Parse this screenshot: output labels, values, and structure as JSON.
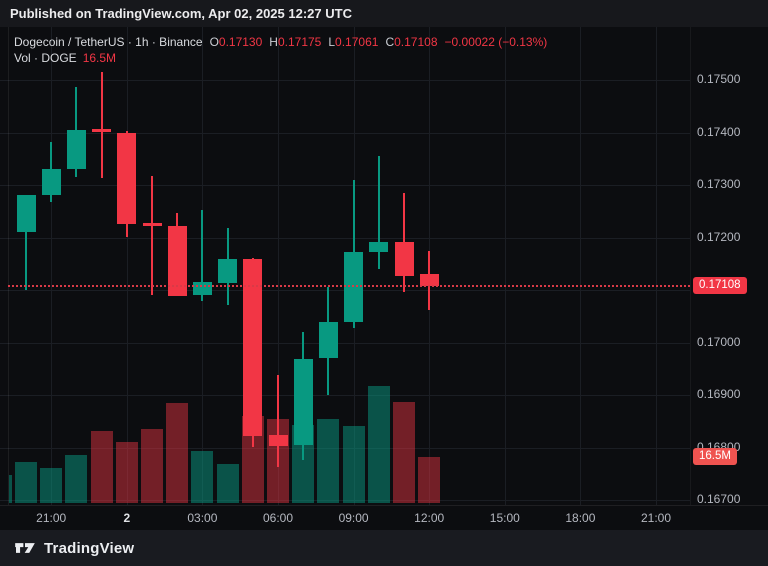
{
  "banner": {
    "text": "Published on TradingView.com, Apr 02, 2025 12:27 UTC"
  },
  "legend": {
    "title": "Dogecoin / TetherUS · 1h · Binance",
    "ohlc": [
      {
        "label": "O",
        "value": "0.17130"
      },
      {
        "label": "H",
        "value": "0.17175"
      },
      {
        "label": "L",
        "value": "0.17061"
      },
      {
        "label": "C",
        "value": "0.17108"
      }
    ],
    "change": "−0.00022 (−0.13%)",
    "volume_label": "Vol · DOGE",
    "volume_value": "16.5M"
  },
  "footer": {
    "brand": "TradingView"
  },
  "colors": {
    "up": "#089981",
    "down": "#f23645",
    "volume_up": "rgba(8,153,129,0.5)",
    "volume_down": "rgba(242,54,69,0.45)",
    "price_badge": "#f23645",
    "volume_badge": "#ef5350",
    "grid": "#1b1e24",
    "axis_text": "#b5b8c0",
    "background": "#0c0d10"
  },
  "chart_data": {
    "type": "candlestick",
    "title": "Dogecoin / TetherUS",
    "interval": "1h",
    "exchange": "Binance",
    "grid": true,
    "legend_position": "top-left",
    "price_axis": {
      "min": 0.167,
      "max": 0.175,
      "tick_step": 0.001,
      "labels": [
        "0.17500",
        "0.17400",
        "0.17300",
        "0.17200",
        "0.17100",
        "0.17000",
        "0.16900",
        "0.16800",
        "0.16700"
      ]
    },
    "time_axis": {
      "ticks": [
        {
          "label": "21:00",
          "slot": 1
        },
        {
          "label": "2",
          "slot": 4,
          "bold": true
        },
        {
          "label": "03:00",
          "slot": 7
        },
        {
          "label": "06:00",
          "slot": 10
        },
        {
          "label": "09:00",
          "slot": 13
        },
        {
          "label": "12:00",
          "slot": 16
        },
        {
          "label": "15:00",
          "slot": 19
        },
        {
          "label": "18:00",
          "slot": 22
        },
        {
          "label": "21:00",
          "slot": 25
        }
      ]
    },
    "candles": [
      {
        "time": "20:00",
        "o": 0.1721,
        "h": 0.17281,
        "l": 0.171,
        "c": 0.17281
      },
      {
        "time": "21:00",
        "o": 0.17281,
        "h": 0.17382,
        "l": 0.17268,
        "c": 0.1733
      },
      {
        "time": "22:00",
        "o": 0.1733,
        "h": 0.17487,
        "l": 0.17315,
        "c": 0.17405
      },
      {
        "time": "23:00",
        "o": 0.17406,
        "h": 0.17515,
        "l": 0.17313,
        "c": 0.174
      },
      {
        "time": "00:00",
        "o": 0.174,
        "h": 0.17403,
        "l": 0.17201,
        "c": 0.17226
      },
      {
        "time": "01:00",
        "o": 0.17228,
        "h": 0.17317,
        "l": 0.1709,
        "c": 0.17222
      },
      {
        "time": "02:00",
        "o": 0.17222,
        "h": 0.17247,
        "l": 0.17089,
        "c": 0.17089
      },
      {
        "time": "03:00",
        "o": 0.1709,
        "h": 0.17252,
        "l": 0.17079,
        "c": 0.17115
      },
      {
        "time": "04:00",
        "o": 0.17113,
        "h": 0.17218,
        "l": 0.17071,
        "c": 0.17159
      },
      {
        "time": "05:00",
        "o": 0.1716,
        "h": 0.17161,
        "l": 0.16801,
        "c": 0.16822
      },
      {
        "time": "06:00",
        "o": 0.16823,
        "h": 0.16938,
        "l": 0.16763,
        "c": 0.16803
      },
      {
        "time": "07:00",
        "o": 0.16804,
        "h": 0.1702,
        "l": 0.16776,
        "c": 0.16969
      },
      {
        "time": "08:00",
        "o": 0.1697,
        "h": 0.17106,
        "l": 0.169,
        "c": 0.17039
      },
      {
        "time": "09:00",
        "o": 0.17039,
        "h": 0.1731,
        "l": 0.17028,
        "c": 0.17172
      },
      {
        "time": "10:00",
        "o": 0.17172,
        "h": 0.17355,
        "l": 0.1714,
        "c": 0.17191
      },
      {
        "time": "11:00",
        "o": 0.17191,
        "h": 0.17285,
        "l": 0.17096,
        "c": 0.17126
      },
      {
        "time": "12:00",
        "o": 0.1713,
        "h": 0.17175,
        "l": 0.17061,
        "c": 0.17108
      }
    ],
    "volume": {
      "unit": "M",
      "bars": [
        {
          "time": "19:00",
          "value": 10.0,
          "up": true
        },
        {
          "time": "20:00",
          "value": 14.7,
          "up": true
        },
        {
          "time": "21:00",
          "value": 12.6,
          "up": true
        },
        {
          "time": "22:00",
          "value": 17.2,
          "up": true
        },
        {
          "time": "23:00",
          "value": 25.8,
          "up": false
        },
        {
          "time": "00:00",
          "value": 21.9,
          "up": false
        },
        {
          "time": "01:00",
          "value": 26.5,
          "up": false
        },
        {
          "time": "02:00",
          "value": 35.9,
          "up": false
        },
        {
          "time": "03:00",
          "value": 18.7,
          "up": true
        },
        {
          "time": "04:00",
          "value": 14.0,
          "up": true
        },
        {
          "time": "05:00",
          "value": 31.2,
          "up": false
        },
        {
          "time": "06:00",
          "value": 30.1,
          "up": false
        },
        {
          "time": "07:00",
          "value": 28.0,
          "up": true
        },
        {
          "time": "08:00",
          "value": 30.1,
          "up": true
        },
        {
          "time": "09:00",
          "value": 27.6,
          "up": true
        },
        {
          "time": "10:00",
          "value": 42.0,
          "up": true
        },
        {
          "time": "11:00",
          "value": 36.2,
          "up": false
        },
        {
          "time": "12:00",
          "value": 16.5,
          "up": false
        }
      ]
    },
    "last_price": {
      "value": 0.17108,
      "label": "0.17108"
    },
    "last_volume": {
      "value": 16.5,
      "label": "16.5M"
    }
  }
}
